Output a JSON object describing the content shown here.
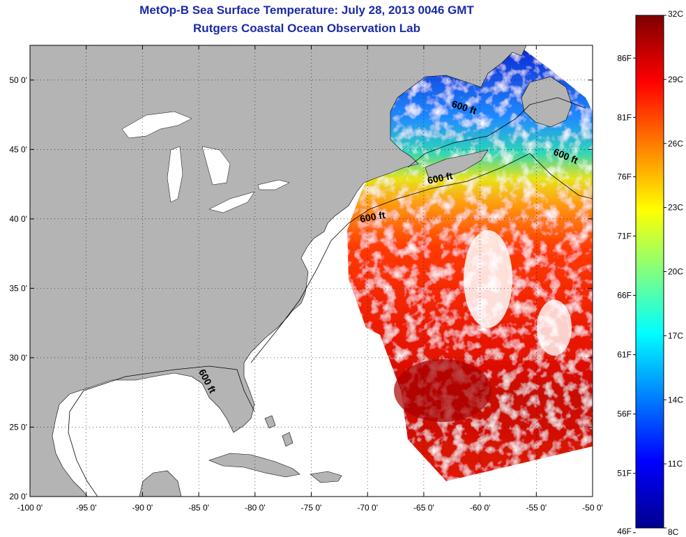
{
  "title": {
    "line1": "MetOp-B Sea Surface Temperature:  July 28, 2013 0046 GMT",
    "line2": "Rutgers Coastal Ocean Observation Lab"
  },
  "map": {
    "lon_range": [
      -100,
      -50
    ],
    "lat_range": [
      20,
      52.5
    ],
    "lon_ticks": [
      {
        "value": -100,
        "label": "-100 0'"
      },
      {
        "value": -95,
        "label": "-95 0'"
      },
      {
        "value": -90,
        "label": "-90 0'"
      },
      {
        "value": -85,
        "label": "-85 0'"
      },
      {
        "value": -80,
        "label": "-80 0'"
      },
      {
        "value": -75,
        "label": "-75 0'"
      },
      {
        "value": -70,
        "label": "-70 0'"
      },
      {
        "value": -65,
        "label": "-65 0'"
      },
      {
        "value": -60,
        "label": "-60 0'"
      },
      {
        "value": -55,
        "label": "-55 0'"
      },
      {
        "value": -50,
        "label": "-50 0'"
      }
    ],
    "lat_ticks": [
      {
        "value": 20,
        "label": "20 0'"
      },
      {
        "value": 25,
        "label": "25 0'"
      },
      {
        "value": 30,
        "label": "30 0'"
      },
      {
        "value": 35,
        "label": "35 0'"
      },
      {
        "value": 40,
        "label": "40 0'"
      },
      {
        "value": 45,
        "label": "45 0'"
      },
      {
        "value": 50,
        "label": "50 0'"
      }
    ],
    "contour_labels": [
      {
        "text": "600 ft",
        "lon": -61.5,
        "lat": 47.8,
        "angle": 18
      },
      {
        "text": "600 ft",
        "lon": -52.5,
        "lat": 44.3,
        "angle": 22
      },
      {
        "text": "600 ft",
        "lon": -63.5,
        "lat": 42.7,
        "angle": -12
      },
      {
        "text": "600 ft",
        "lon": -69.5,
        "lat": 39.9,
        "angle": -10
      },
      {
        "text": "600 ft",
        "lon": -84.5,
        "lat": 28.2,
        "angle": 62
      }
    ],
    "colors": {
      "land": "#b4b4b4",
      "ocean_nodata": "#ffffff",
      "grid": "#000000"
    }
  },
  "colorbar": {
    "min_c": 8,
    "max_c": 32,
    "celsius_labels": [
      {
        "value": 32,
        "label": "32C"
      },
      {
        "value": 29,
        "label": "29C"
      },
      {
        "value": 26,
        "label": "26C"
      },
      {
        "value": 23,
        "label": "23C"
      },
      {
        "value": 20,
        "label": "20C"
      },
      {
        "value": 17,
        "label": "17C"
      },
      {
        "value": 14,
        "label": "14C"
      },
      {
        "value": 11,
        "label": "11C"
      },
      {
        "value": 8,
        "label": "8C"
      }
    ],
    "fahrenheit_labels": [
      {
        "value": 86,
        "label": "86F"
      },
      {
        "value": 81,
        "label": "81F"
      },
      {
        "value": 76,
        "label": "76F"
      },
      {
        "value": 71,
        "label": "71F"
      },
      {
        "value": 66,
        "label": "66F"
      },
      {
        "value": 61,
        "label": "61F"
      },
      {
        "value": 56,
        "label": "56F"
      },
      {
        "value": 51,
        "label": "51F"
      },
      {
        "value": 46,
        "label": "46F"
      }
    ],
    "colors": [
      "#7f0000",
      "#ff0000",
      "#ffff00",
      "#00ffff",
      "#0000ff",
      "#00008f"
    ]
  }
}
